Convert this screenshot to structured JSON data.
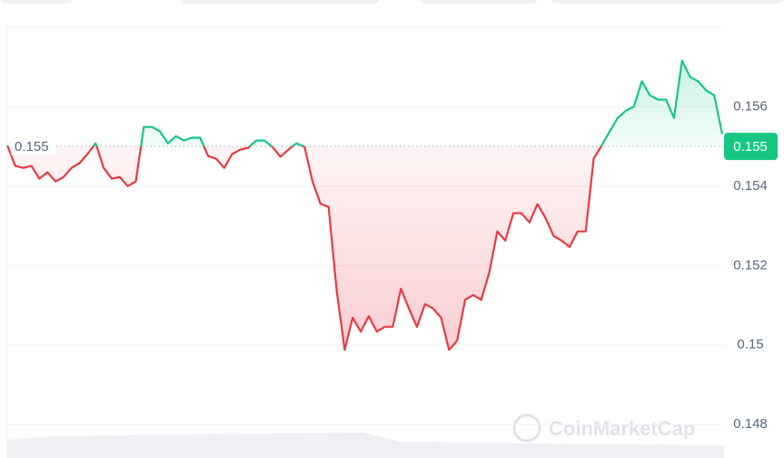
{
  "chart_data": {
    "type": "line",
    "values": [
      0.15503,
      0.15451,
      0.15446,
      0.15451,
      0.15419,
      0.15435,
      0.15412,
      0.15423,
      0.15446,
      0.15458,
      0.15481,
      0.15508,
      0.15446,
      0.15419,
      0.15423,
      0.154,
      0.15412,
      0.15549,
      0.15549,
      0.15538,
      0.15508,
      0.15526,
      0.15515,
      0.15522,
      0.15522,
      0.15476,
      0.15469,
      0.15446,
      0.15481,
      0.15492,
      0.15497,
      0.15515,
      0.15515,
      0.15499,
      0.15474,
      0.15492,
      0.15508,
      0.15499,
      0.15412,
      0.15355,
      0.15348,
      0.15137,
      0.14988,
      0.15069,
      0.15034,
      0.15073,
      0.15034,
      0.15046,
      0.15046,
      0.15142,
      0.15092,
      0.15046,
      0.15103,
      0.15092,
      0.15069,
      0.14988,
      0.15011,
      0.15114,
      0.15126,
      0.15114,
      0.15183,
      0.15286,
      0.15263,
      0.15332,
      0.15332,
      0.15309,
      0.15355,
      0.1532,
      0.15275,
      0.15263,
      0.15247,
      0.15286,
      0.15286,
      0.15469,
      0.15503,
      0.15538,
      0.15572,
      0.1559,
      0.156,
      0.15664,
      0.15629,
      0.15618,
      0.15618,
      0.15572,
      0.15716,
      0.15675,
      0.15664,
      0.15641,
      0.15629,
      0.15531
    ],
    "up_color": "#16c784",
    "down_color": "#ea3943",
    "baseline": 0.155,
    "current_price": 0.155,
    "ylim": [
      0.14725,
      0.158
    ],
    "yticks": [
      0.148,
      0.15,
      0.152,
      0.154,
      0.156
    ],
    "grid": true,
    "watermark": "CoinMarketCap"
  }
}
